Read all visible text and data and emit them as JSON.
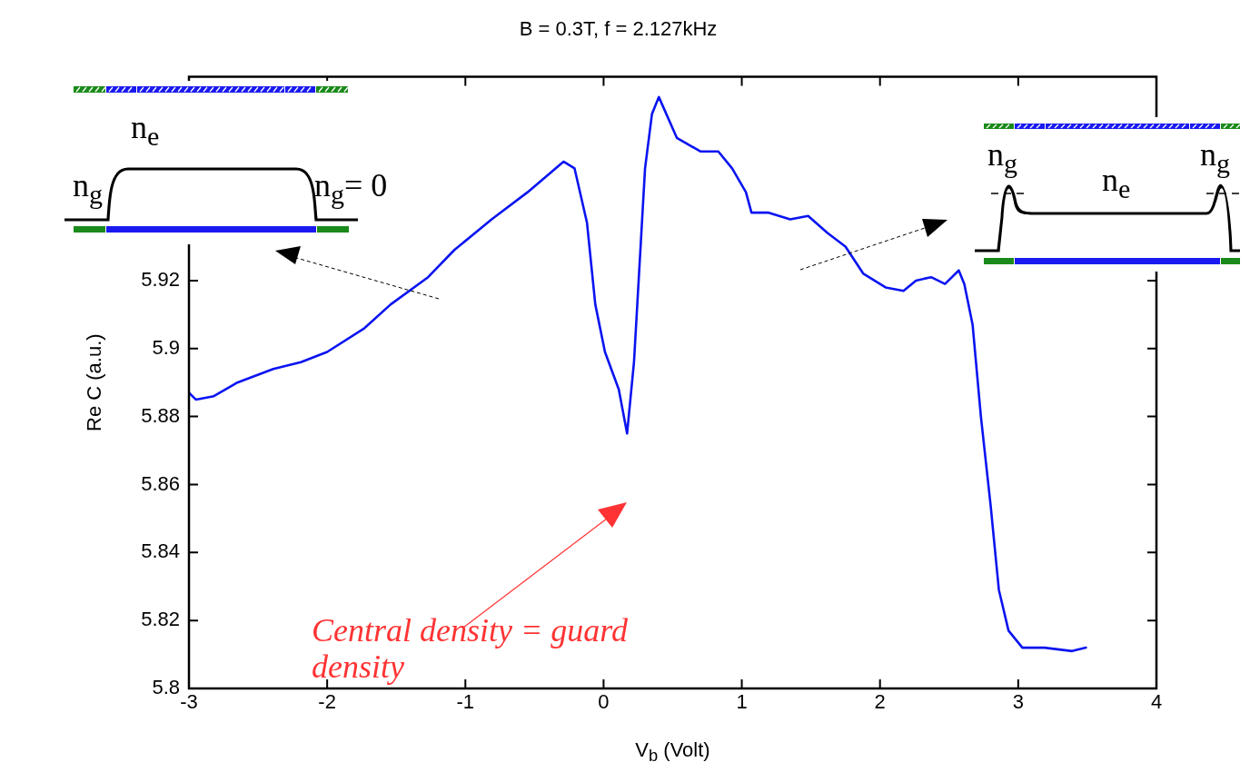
{
  "chart_data": {
    "type": "line",
    "title": "B = 0.3T, f = 2.127kHz",
    "xlabel": "V$_{b}$ (Volt)",
    "ylabel": "Re C (a.u.)",
    "x": [
      -3,
      -2.95,
      -2.82,
      -2.65,
      -2.39,
      -2.19,
      -2,
      -1.73,
      -1.54,
      -1.27,
      -1.08,
      -0.81,
      -0.55,
      -0.29,
      -0.21,
      -0.12,
      -0.06,
      0.01,
      0.11,
      0.17,
      0.22,
      0.3,
      0.35,
      0.4,
      0.53,
      0.7,
      0.83,
      0.93,
      1.03,
      1.07,
      1.19,
      1.35,
      1.48,
      1.62,
      1.75,
      1.88,
      2.04,
      2.17,
      2.26,
      2.37,
      2.47,
      2.57,
      2.61,
      2.67,
      2.73,
      2.8,
      2.86,
      2.93,
      3.03,
      3.19,
      3.39,
      3.49
    ],
    "series": [
      {
        "color": "#0a14f0",
        "values": [
          5.887,
          5.885,
          5.886,
          5.89,
          5.894,
          5.896,
          5.899,
          5.906,
          5.913,
          5.921,
          5.929,
          5.938,
          5.946,
          5.955,
          5.953,
          5.937,
          5.913,
          5.899,
          5.888,
          5.875,
          5.896,
          5.953,
          5.969,
          5.974,
          5.962,
          5.958,
          5.958,
          5.953,
          5.946,
          5.94,
          5.94,
          5.938,
          5.939,
          5.934,
          5.93,
          5.922,
          5.918,
          5.917,
          5.92,
          5.921,
          5.919,
          5.923,
          5.919,
          5.907,
          5.88,
          5.854,
          5.829,
          5.817,
          5.812,
          5.812,
          5.811,
          5.812
        ]
      }
    ],
    "xlim": [
      -3,
      4
    ],
    "ylim": [
      5.8,
      5.98
    ],
    "xticks": [
      -3,
      -2,
      -1,
      0,
      1,
      2,
      3,
      4
    ],
    "yticks": [
      5.8,
      5.82,
      5.84,
      5.86,
      5.88,
      5.9,
      5.92
    ],
    "grid": false,
    "legend": false,
    "marker": "none",
    "line_style": "solid",
    "annotations": [
      "Central density = guard density",
      "n$_{e}$",
      "n$_{g}$",
      "n$_{g}$= 0",
      "n$_{g}$",
      "n$_{e}$",
      "n$_{g}$"
    ]
  }
}
